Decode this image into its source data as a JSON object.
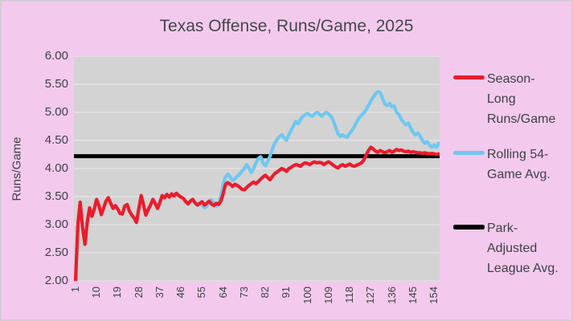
{
  "colors": {
    "background": "#F3CAED",
    "plot_background": "#D3D3D3",
    "gridline": "#E4E2E4",
    "text": "#3F4045",
    "title_text": "#45464C",
    "season_red": "#EA1C2C",
    "rolling_blue": "#6FC7F0",
    "league_black": "#000000"
  },
  "legend": {
    "items": [
      {
        "id": "season",
        "label": "Season-\nLong\nRuns/Game",
        "color": "#EA1C2C"
      },
      {
        "id": "rolling",
        "label": "Rolling 54-\nGame Avg.",
        "color": "#6FC7F0"
      },
      {
        "id": "park",
        "label": "Park-\nAdjusted\nLeague Avg.",
        "color": "#000000"
      }
    ]
  },
  "chart_data": {
    "type": "line",
    "title": "Texas Offense, Runs/Game, 2025",
    "xlabel": "",
    "ylabel": "Runs/Game",
    "xlim": [
      1,
      156
    ],
    "ylim": [
      2.0,
      6.0
    ],
    "grid": "horizontal",
    "legend_position": "right",
    "x_ticks": [
      1,
      10,
      19,
      28,
      37,
      46,
      55,
      64,
      73,
      82,
      91,
      100,
      109,
      118,
      127,
      136,
      145,
      154
    ],
    "y_ticks": [
      {
        "value": 6.0,
        "label": "6.00"
      },
      {
        "value": 5.5,
        "label": "5.50"
      },
      {
        "value": 5.0,
        "label": "5.00"
      },
      {
        "value": 4.5,
        "label": "4.50"
      },
      {
        "value": 4.0,
        "label": "4.00"
      },
      {
        "value": 3.5,
        "label": "3.50"
      },
      {
        "value": 3.0,
        "label": "3.00"
      },
      {
        "value": 2.5,
        "label": "2.50"
      },
      {
        "value": 2.0,
        "label": "2.00"
      }
    ],
    "series": [
      {
        "id": "season_long",
        "name": "Season-Long Runs/Game",
        "type": "line",
        "color": "#EA1C2C",
        "width": 4.2,
        "points": [
          [
            1,
            2.0
          ],
          [
            2,
            3.0
          ],
          [
            3,
            3.4
          ],
          [
            4,
            2.95
          ],
          [
            5,
            2.65
          ],
          [
            6,
            3.05
          ],
          [
            7,
            3.3
          ],
          [
            8,
            3.15
          ],
          [
            9,
            3.28
          ],
          [
            10,
            3.45
          ],
          [
            11,
            3.33
          ],
          [
            12,
            3.18
          ],
          [
            13,
            3.3
          ],
          [
            14,
            3.42
          ],
          [
            15,
            3.48
          ],
          [
            16,
            3.38
          ],
          [
            17,
            3.29
          ],
          [
            18,
            3.34
          ],
          [
            19,
            3.28
          ],
          [
            20,
            3.2
          ],
          [
            21,
            3.19
          ],
          [
            22,
            3.33
          ],
          [
            23,
            3.36
          ],
          [
            24,
            3.24
          ],
          [
            25,
            3.17
          ],
          [
            26,
            3.12
          ],
          [
            27,
            3.04
          ],
          [
            28,
            3.28
          ],
          [
            29,
            3.52
          ],
          [
            30,
            3.35
          ],
          [
            31,
            3.17
          ],
          [
            32,
            3.27
          ],
          [
            33,
            3.35
          ],
          [
            34,
            3.45
          ],
          [
            35,
            3.38
          ],
          [
            36,
            3.29
          ],
          [
            37,
            3.4
          ],
          [
            38,
            3.52
          ],
          [
            39,
            3.48
          ],
          [
            40,
            3.54
          ],
          [
            41,
            3.49
          ],
          [
            42,
            3.55
          ],
          [
            43,
            3.51
          ],
          [
            44,
            3.56
          ],
          [
            45,
            3.52
          ],
          [
            46,
            3.49
          ],
          [
            47,
            3.47
          ],
          [
            48,
            3.41
          ],
          [
            49,
            3.37
          ],
          [
            50,
            3.42
          ],
          [
            51,
            3.45
          ],
          [
            52,
            3.39
          ],
          [
            53,
            3.35
          ],
          [
            54,
            3.38
          ],
          [
            55,
            3.41
          ],
          [
            56,
            3.35
          ],
          [
            57,
            3.38
          ],
          [
            58,
            3.42
          ],
          [
            59,
            3.37
          ],
          [
            60,
            3.34
          ],
          [
            61,
            3.38
          ],
          [
            62,
            3.36
          ],
          [
            63,
            3.42
          ],
          [
            64,
            3.55
          ],
          [
            65,
            3.72
          ],
          [
            66,
            3.75
          ],
          [
            67,
            3.72
          ],
          [
            68,
            3.68
          ],
          [
            69,
            3.72
          ],
          [
            70,
            3.7
          ],
          [
            71,
            3.67
          ],
          [
            72,
            3.63
          ],
          [
            73,
            3.62
          ],
          [
            74,
            3.66
          ],
          [
            75,
            3.7
          ],
          [
            76,
            3.73
          ],
          [
            77,
            3.76
          ],
          [
            78,
            3.73
          ],
          [
            79,
            3.77
          ],
          [
            80,
            3.81
          ],
          [
            81,
            3.85
          ],
          [
            82,
            3.88
          ],
          [
            83,
            3.84
          ],
          [
            84,
            3.8
          ],
          [
            85,
            3.86
          ],
          [
            86,
            3.91
          ],
          [
            87,
            3.94
          ],
          [
            88,
            3.97
          ],
          [
            89,
            4.0
          ],
          [
            90,
            3.98
          ],
          [
            91,
            3.95
          ],
          [
            92,
            4.0
          ],
          [
            93,
            4.02
          ],
          [
            94,
            4.05
          ],
          [
            95,
            4.07
          ],
          [
            96,
            4.06
          ],
          [
            97,
            4.04
          ],
          [
            98,
            4.08
          ],
          [
            99,
            4.1
          ],
          [
            100,
            4.09
          ],
          [
            101,
            4.07
          ],
          [
            102,
            4.1
          ],
          [
            103,
            4.12
          ],
          [
            104,
            4.1
          ],
          [
            105,
            4.11
          ],
          [
            106,
            4.1
          ],
          [
            107,
            4.07
          ],
          [
            108,
            4.1
          ],
          [
            109,
            4.12
          ],
          [
            110,
            4.09
          ],
          [
            111,
            4.06
          ],
          [
            112,
            4.03
          ],
          [
            113,
            4.01
          ],
          [
            114,
            4.05
          ],
          [
            115,
            4.07
          ],
          [
            116,
            4.04
          ],
          [
            117,
            4.06
          ],
          [
            118,
            4.08
          ],
          [
            119,
            4.05
          ],
          [
            120,
            4.04
          ],
          [
            121,
            4.06
          ],
          [
            122,
            4.08
          ],
          [
            123,
            4.1
          ],
          [
            124,
            4.15
          ],
          [
            125,
            4.24
          ],
          [
            126,
            4.32
          ],
          [
            127,
            4.38
          ],
          [
            128,
            4.35
          ],
          [
            129,
            4.31
          ],
          [
            130,
            4.29
          ],
          [
            131,
            4.32
          ],
          [
            132,
            4.3
          ],
          [
            133,
            4.28
          ],
          [
            134,
            4.3
          ],
          [
            135,
            4.32
          ],
          [
            136,
            4.29
          ],
          [
            137,
            4.31
          ],
          [
            138,
            4.34
          ],
          [
            139,
            4.32
          ],
          [
            140,
            4.33
          ],
          [
            141,
            4.31
          ],
          [
            142,
            4.3
          ],
          [
            143,
            4.31
          ],
          [
            144,
            4.29
          ],
          [
            145,
            4.3
          ],
          [
            146,
            4.29
          ],
          [
            147,
            4.28
          ],
          [
            148,
            4.28
          ],
          [
            149,
            4.27
          ],
          [
            150,
            4.28
          ],
          [
            151,
            4.27
          ],
          [
            152,
            4.26
          ],
          [
            153,
            4.27
          ],
          [
            154,
            4.26
          ],
          [
            155,
            4.25
          ],
          [
            156,
            4.26
          ]
        ]
      },
      {
        "id": "rolling_54",
        "name": "Rolling 54-Game Avg.",
        "type": "line",
        "color": "#6FC7F0",
        "width": 4.2,
        "points": [
          [
            54,
            3.38
          ],
          [
            55,
            3.35
          ],
          [
            56,
            3.3
          ],
          [
            57,
            3.33
          ],
          [
            58,
            3.4
          ],
          [
            59,
            3.44
          ],
          [
            60,
            3.38
          ],
          [
            61,
            3.33
          ],
          [
            62,
            3.38
          ],
          [
            63,
            3.5
          ],
          [
            64,
            3.72
          ],
          [
            65,
            3.85
          ],
          [
            66,
            3.9
          ],
          [
            67,
            3.85
          ],
          [
            68,
            3.79
          ],
          [
            69,
            3.82
          ],
          [
            70,
            3.86
          ],
          [
            71,
            3.9
          ],
          [
            72,
            3.95
          ],
          [
            73,
            4.0
          ],
          [
            74,
            4.07
          ],
          [
            75,
            4.0
          ],
          [
            76,
            3.93
          ],
          [
            77,
            4.0
          ],
          [
            78,
            4.1
          ],
          [
            79,
            4.18
          ],
          [
            80,
            4.21
          ],
          [
            81,
            4.1
          ],
          [
            82,
            4.05
          ],
          [
            83,
            4.12
          ],
          [
            84,
            4.22
          ],
          [
            85,
            4.35
          ],
          [
            86,
            4.45
          ],
          [
            87,
            4.52
          ],
          [
            88,
            4.57
          ],
          [
            89,
            4.6
          ],
          [
            90,
            4.55
          ],
          [
            91,
            4.5
          ],
          [
            92,
            4.6
          ],
          [
            93,
            4.68
          ],
          [
            94,
            4.76
          ],
          [
            95,
            4.84
          ],
          [
            96,
            4.8
          ],
          [
            97,
            4.87
          ],
          [
            98,
            4.93
          ],
          [
            99,
            4.96
          ],
          [
            100,
            4.98
          ],
          [
            101,
            4.95
          ],
          [
            102,
            4.93
          ],
          [
            103,
            4.97
          ],
          [
            104,
            5.0
          ],
          [
            105,
            4.97
          ],
          [
            106,
            4.93
          ],
          [
            107,
            4.97
          ],
          [
            108,
            5.0
          ],
          [
            109,
            4.97
          ],
          [
            110,
            4.93
          ],
          [
            111,
            4.85
          ],
          [
            112,
            4.73
          ],
          [
            113,
            4.62
          ],
          [
            114,
            4.57
          ],
          [
            115,
            4.6
          ],
          [
            116,
            4.57
          ],
          [
            117,
            4.56
          ],
          [
            118,
            4.63
          ],
          [
            119,
            4.68
          ],
          [
            120,
            4.75
          ],
          [
            121,
            4.83
          ],
          [
            122,
            4.9
          ],
          [
            123,
            4.95
          ],
          [
            124,
            4.99
          ],
          [
            125,
            5.05
          ],
          [
            126,
            5.12
          ],
          [
            127,
            5.2
          ],
          [
            128,
            5.27
          ],
          [
            129,
            5.33
          ],
          [
            130,
            5.37
          ],
          [
            131,
            5.35
          ],
          [
            132,
            5.25
          ],
          [
            133,
            5.15
          ],
          [
            134,
            5.12
          ],
          [
            135,
            5.16
          ],
          [
            136,
            5.1
          ],
          [
            137,
            5.11
          ],
          [
            138,
            5.0
          ],
          [
            139,
            4.96
          ],
          [
            140,
            4.88
          ],
          [
            141,
            4.82
          ],
          [
            142,
            4.78
          ],
          [
            143,
            4.81
          ],
          [
            144,
            4.72
          ],
          [
            145,
            4.65
          ],
          [
            146,
            4.6
          ],
          [
            147,
            4.63
          ],
          [
            148,
            4.58
          ],
          [
            149,
            4.5
          ],
          [
            150,
            4.45
          ],
          [
            151,
            4.48
          ],
          [
            152,
            4.42
          ],
          [
            153,
            4.38
          ],
          [
            154,
            4.42
          ],
          [
            155,
            4.38
          ],
          [
            156,
            4.45
          ]
        ]
      },
      {
        "id": "park_adjusted",
        "name": "Park-Adjusted League Avg.",
        "type": "hline",
        "color": "#000000",
        "width": 5,
        "value": 4.22
      }
    ]
  }
}
